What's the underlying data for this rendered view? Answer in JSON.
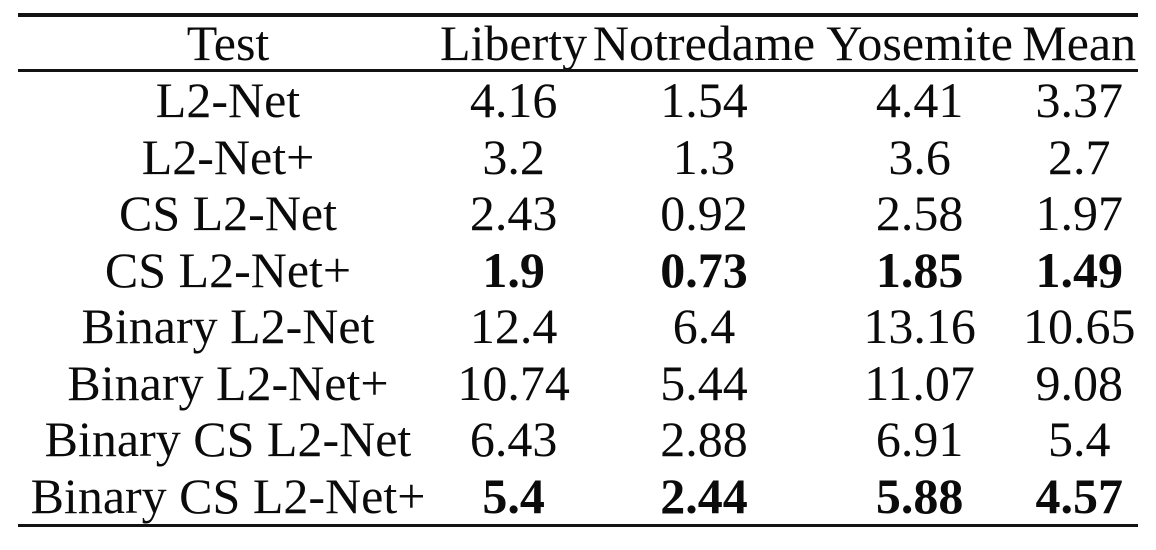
{
  "table": {
    "columns": [
      "Test",
      "Liberty",
      "Notredame",
      "Yosemite",
      "Mean"
    ],
    "rows": [
      {
        "label": "L2-Net",
        "values": [
          "4.16",
          "1.54",
          "4.41",
          "3.37"
        ],
        "bold": false
      },
      {
        "label": "L2-Net+",
        "values": [
          "3.2",
          "1.3",
          "3.6",
          "2.7"
        ],
        "bold": false
      },
      {
        "label": "CS L2-Net",
        "values": [
          "2.43",
          "0.92",
          "2.58",
          "1.97"
        ],
        "bold": false
      },
      {
        "label": "CS L2-Net+",
        "values": [
          "1.9",
          "0.73",
          "1.85",
          "1.49"
        ],
        "bold": true
      },
      {
        "label": "Binary L2-Net",
        "values": [
          "12.4",
          "6.4",
          "13.16",
          "10.65"
        ],
        "bold": false
      },
      {
        "label": "Binary L2-Net+",
        "values": [
          "10.74",
          "5.44",
          "11.07",
          "9.08"
        ],
        "bold": false
      },
      {
        "label": "Binary CS L2-Net",
        "values": [
          "6.43",
          "2.88",
          "6.91",
          "5.4"
        ],
        "bold": false
      },
      {
        "label": "Binary CS L2-Net+",
        "values": [
          "5.4",
          "2.44",
          "5.88",
          "4.57"
        ],
        "bold": true
      }
    ],
    "colors": {
      "background": "#ffffff",
      "text": "#0b0b0b",
      "rule": "#131313"
    }
  }
}
